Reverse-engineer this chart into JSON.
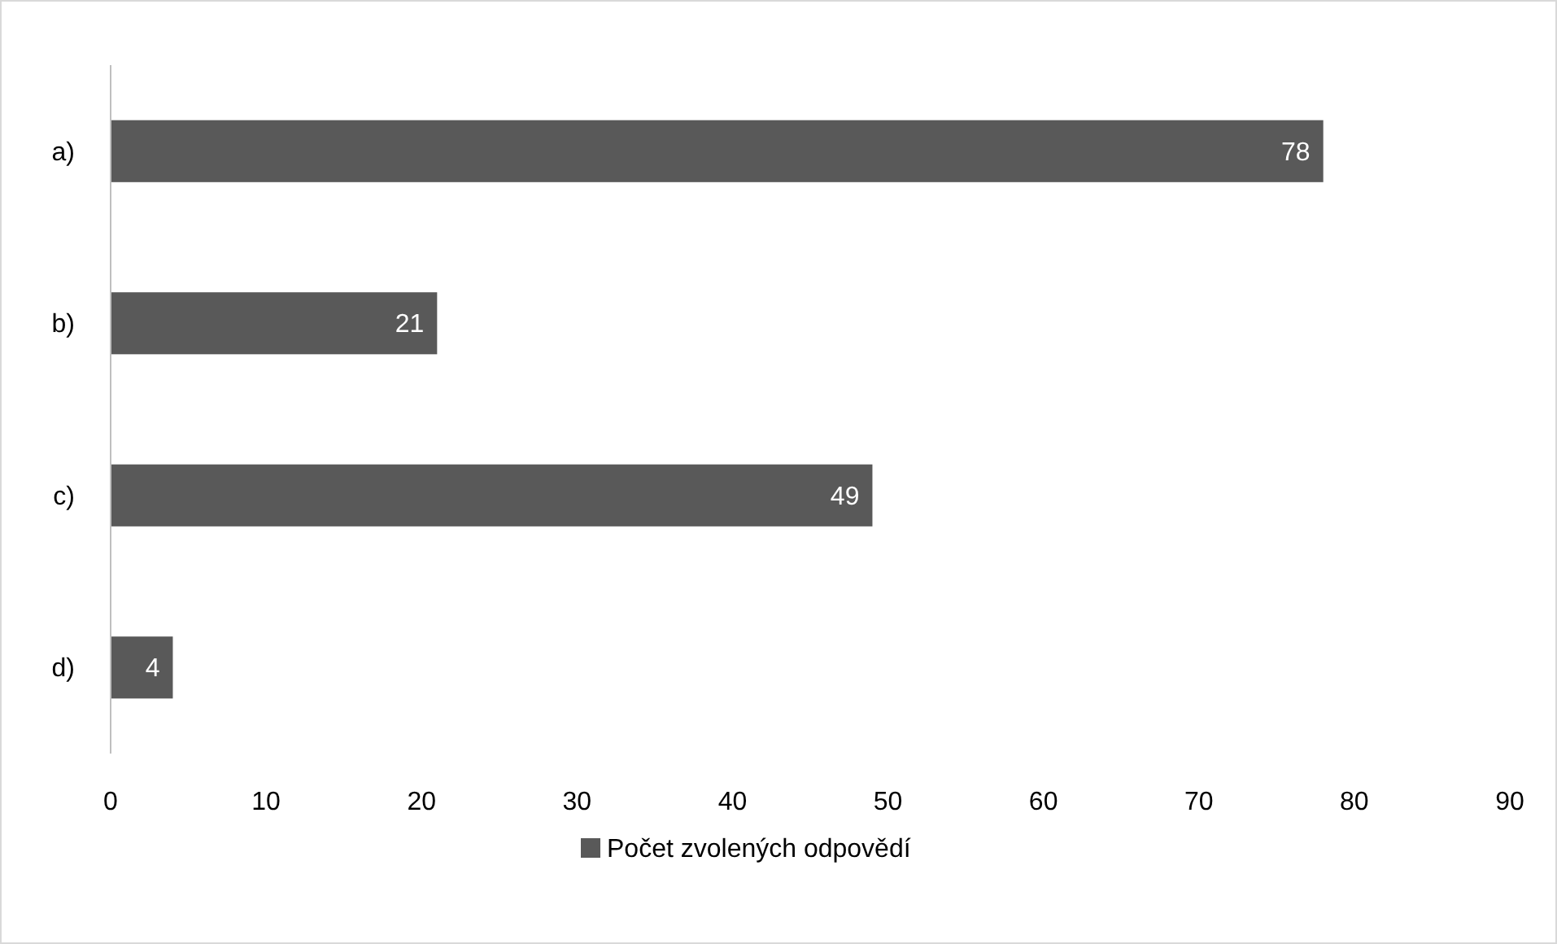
{
  "chart_data": {
    "type": "bar",
    "orientation": "horizontal",
    "categories": [
      "a)",
      "b)",
      "c)",
      "d)"
    ],
    "series": [
      {
        "name": "Počet zvolených odpovědí",
        "color": "#595959",
        "values": [
          78,
          21,
          49,
          4
        ]
      }
    ],
    "xlim": [
      0,
      90
    ],
    "xticks": [
      0,
      10,
      20,
      30,
      40,
      50,
      60,
      70,
      80,
      90
    ],
    "data_labels": true,
    "grid": false,
    "legend": "bottom"
  }
}
